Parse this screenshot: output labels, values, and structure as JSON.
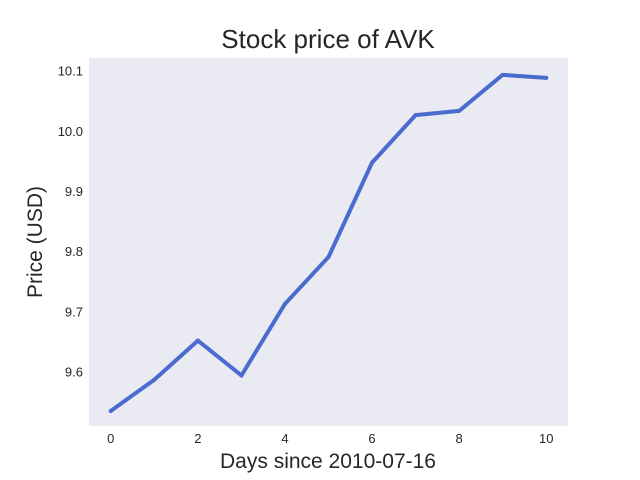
{
  "chart_data": {
    "type": "line",
    "title": "Stock price of AVK",
    "xlabel": "Days since 2010-07-16",
    "ylabel": "Price (USD)",
    "x": [
      0,
      1,
      2,
      3,
      4,
      5,
      6,
      7,
      8,
      9,
      10
    ],
    "series": [
      {
        "values": [
          9.535,
          9.587,
          9.652,
          9.594,
          9.713,
          9.791,
          9.948,
          10.027,
          10.034,
          10.094,
          10.089
        ]
      }
    ],
    "xticks": [
      "0",
      "2",
      "4",
      "6",
      "8",
      "10"
    ],
    "yticks": [
      "9.6",
      "9.7",
      "9.8",
      "9.9",
      "10.0",
      "10.1"
    ],
    "xlim": [
      -0.5,
      10.5
    ],
    "ylim": [
      9.51,
      10.122
    ],
    "grid": false,
    "colors": {
      "line": "#4a6bd0",
      "plot_background": "#eaeaf2"
    }
  }
}
